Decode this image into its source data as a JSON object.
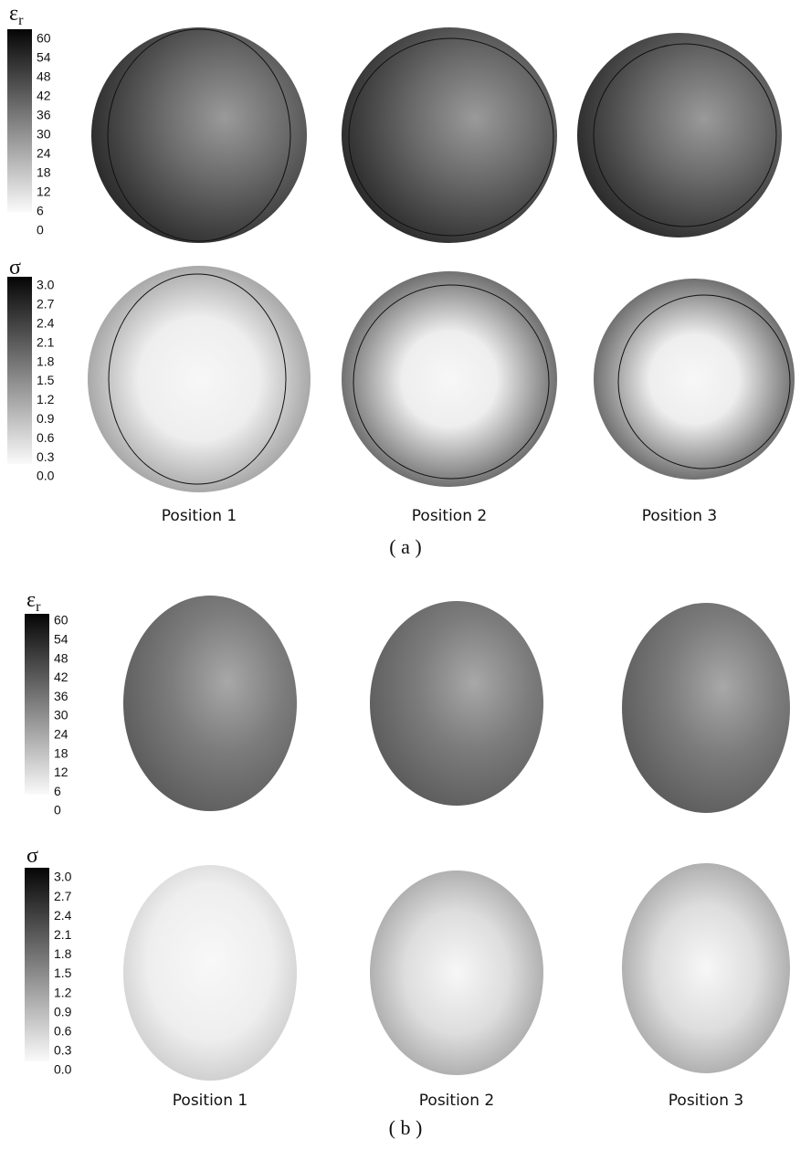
{
  "panels": [
    {
      "label": "( a )",
      "rows": [
        {
          "symbol": "ε",
          "subscript": "r",
          "scale": [
            "60",
            "54",
            "48",
            "42",
            "36",
            "30",
            "24",
            "18",
            "12",
            "6",
            "0"
          ]
        },
        {
          "symbol": "σ",
          "scale": [
            "3.0",
            "2.7",
            "2.4",
            "2.1",
            "1.8",
            "1.5",
            "1.2",
            "0.9",
            "0.6",
            "0.3",
            "0.0"
          ]
        }
      ],
      "positions": [
        "Position 1",
        "Position 2",
        "Position 3"
      ]
    },
    {
      "label": "( b )",
      "rows": [
        {
          "symbol": "ε",
          "subscript": "r",
          "scale": [
            "60",
            "54",
            "48",
            "42",
            "36",
            "30",
            "24",
            "18",
            "12",
            "6",
            "0"
          ]
        },
        {
          "symbol": "σ",
          "scale": [
            "3.0",
            "2.7",
            "2.4",
            "2.1",
            "1.8",
            "1.5",
            "1.2",
            "0.9",
            "0.6",
            "0.3",
            "0.0"
          ]
        }
      ],
      "positions": [
        "Position 1",
        "Position 2",
        "Position 3"
      ]
    }
  ]
}
